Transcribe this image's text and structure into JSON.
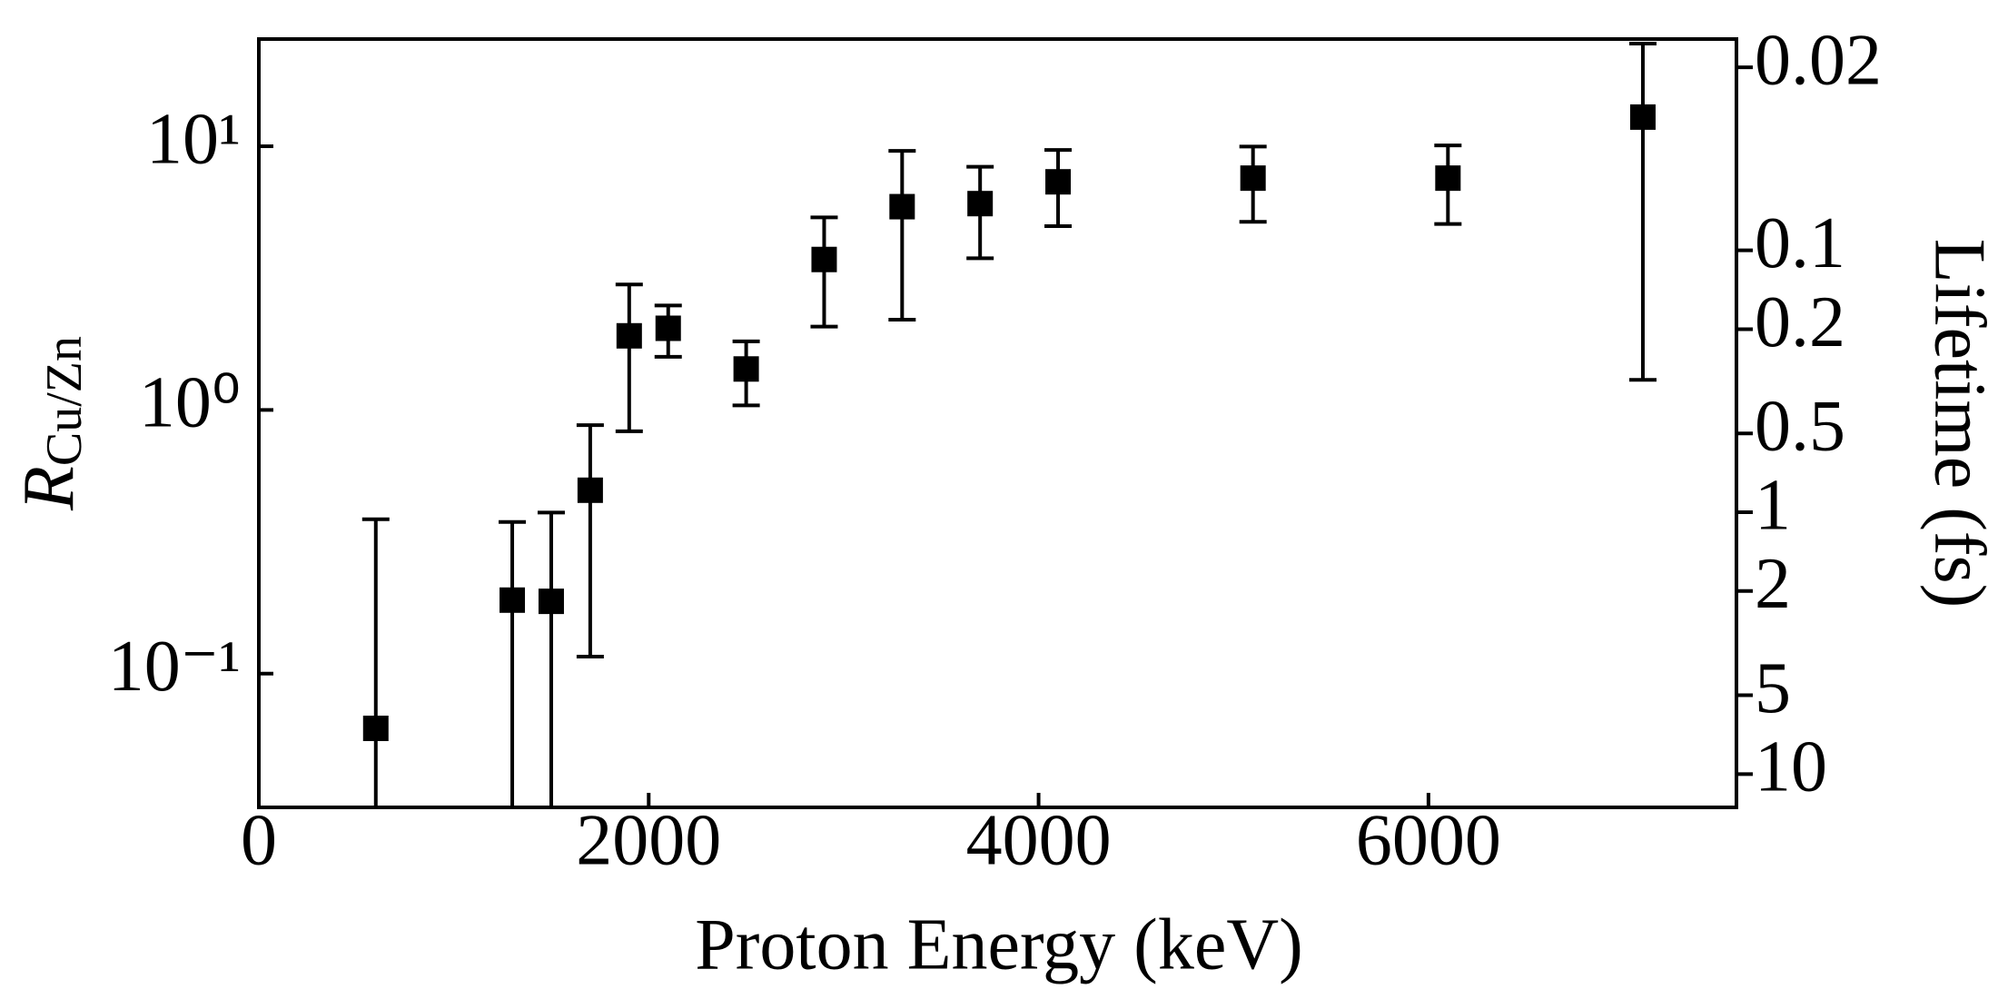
{
  "chart_data": {
    "type": "scatter",
    "xlabel": "Proton Energy (keV)",
    "ylabel": {
      "symbol": "R",
      "subscript": "Cu/Zn"
    },
    "y2label": "Lifetime (fs)",
    "x": [
      600,
      1300,
      1500,
      1700,
      1900,
      2100,
      2500,
      2900,
      3300,
      3700,
      4100,
      5100,
      6100,
      7100
    ],
    "values": [
      0.062,
      0.19,
      0.188,
      0.496,
      1.91,
      2.04,
      1.43,
      3.72,
      5.9,
      6.06,
      7.33,
      7.57,
      7.57,
      12.9
    ],
    "errors": [
      0.323,
      0.186,
      0.22,
      0.38,
      1.08,
      0.45,
      0.39,
      1.65,
      3.7,
      2.3,
      2.35,
      2.4,
      2.5,
      11.6
    ],
    "color": "#000000",
    "xlim": [
      0,
      7580
    ],
    "xticks": [
      0,
      2000,
      4000,
      6000
    ],
    "ylim": [
      0.0311,
      25.5
    ],
    "ylog": true,
    "yticks": [
      {
        "value": 0.1,
        "label": "10⁻¹"
      },
      {
        "value": 1,
        "label": "10⁰"
      },
      {
        "value": 10,
        "label": "10¹"
      }
    ],
    "y2lim": [
      13.4,
      0.0156
    ],
    "y2log": true,
    "y2ticks": [
      0.02,
      0.1,
      0.2,
      0.5,
      1,
      2,
      5,
      10
    ]
  }
}
